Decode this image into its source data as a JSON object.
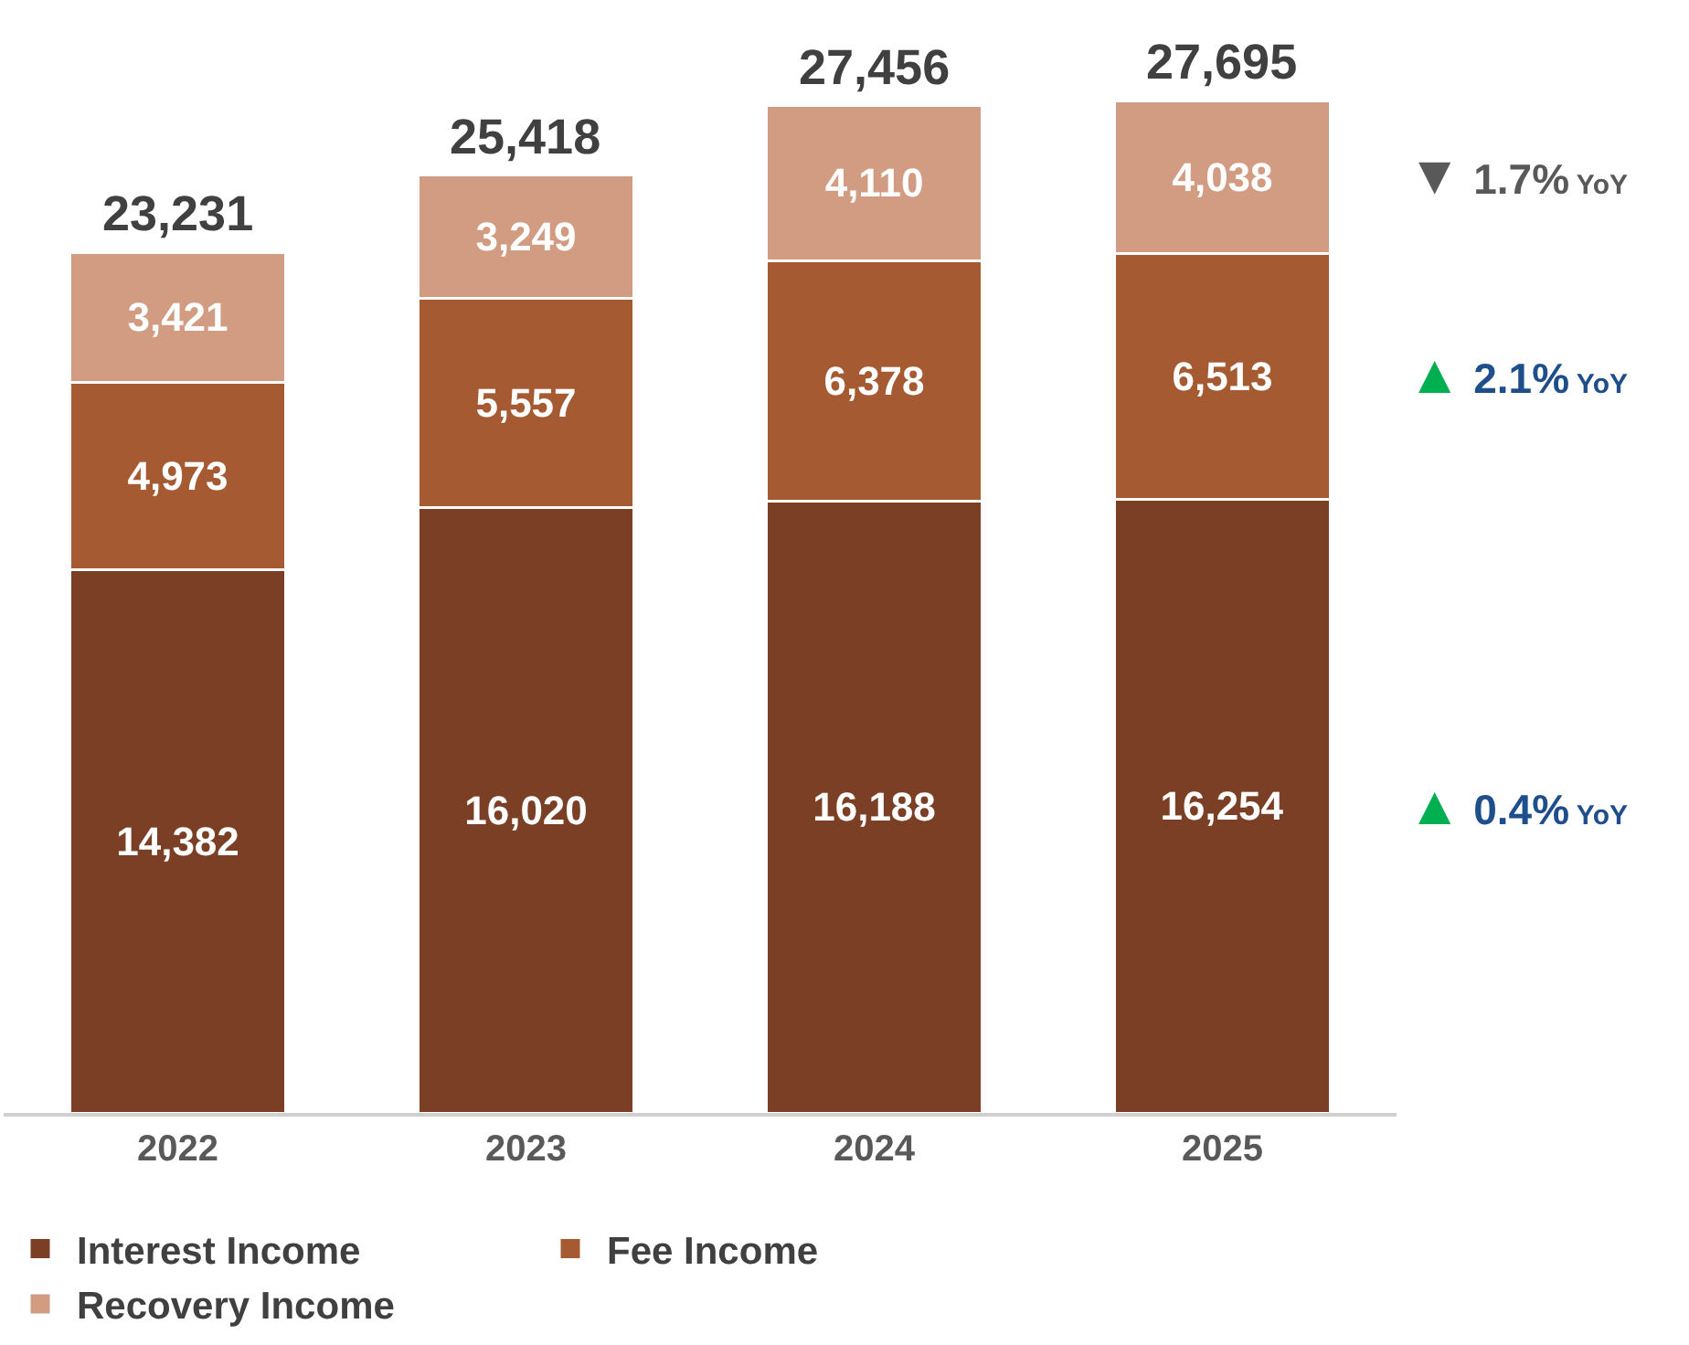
{
  "chart_data": {
    "type": "bar",
    "stacked": true,
    "categories": [
      "2022",
      "2023",
      "2024",
      "2025"
    ],
    "series": [
      {
        "name": "Interest Income",
        "color": "#7a3f25",
        "values": [
          14382,
          16020,
          16188,
          16254
        ],
        "value_labels": [
          "14,382",
          "16,020",
          "16,188",
          "16,254"
        ]
      },
      {
        "name": "Fee Income",
        "color": "#a65a32",
        "values": [
          4973,
          5557,
          6378,
          6513
        ],
        "value_labels": [
          "4,973",
          "5,557",
          "6,378",
          "6,513"
        ]
      },
      {
        "name": "Recovery Income",
        "color": "#d29c82",
        "values": [
          3421,
          3249,
          4110,
          4038
        ],
        "value_labels": [
          "3,421",
          "3,249",
          "4,110",
          "4,038"
        ]
      }
    ],
    "annotations": [
      "23,231",
      "25,418",
      "27,456",
      "27,695",
      "▼ 1.7% YoY",
      "▲ 2.1% YoY",
      "▲ 0.4% YoY"
    ],
    "legend": "bottom"
  }
}
